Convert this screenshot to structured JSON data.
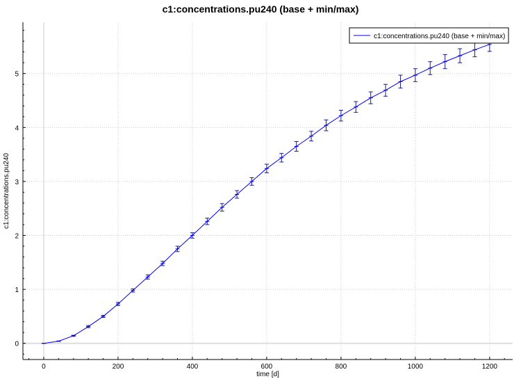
{
  "chart_data": {
    "type": "line",
    "title": "c1:concentrations.pu240 (base + min/max)",
    "xlabel": "time [d]",
    "ylabel": "c1:concentrations.pu240",
    "xlim": [
      -56,
      1262
    ],
    "ylim": [
      -0.3,
      5.95
    ],
    "xticks": [
      0,
      200,
      400,
      600,
      800,
      1000,
      1200
    ],
    "yticks": [
      0,
      1,
      2,
      3,
      4,
      5
    ],
    "grid": true,
    "legend_position": "top-right",
    "series": [
      {
        "name": "c1:concentrations.pu240 (base + min/max)",
        "color": "#0000ff",
        "x": [
          0,
          40,
          80,
          120,
          160,
          200,
          240,
          280,
          320,
          360,
          400,
          440,
          480,
          520,
          560,
          600,
          640,
          680,
          720,
          760,
          800,
          840,
          880,
          920,
          960,
          1000,
          1040,
          1080,
          1120,
          1160,
          1200
        ],
        "y": [
          0,
          0.04,
          0.14,
          0.31,
          0.5,
          0.73,
          0.98,
          1.23,
          1.48,
          1.75,
          2.0,
          2.26,
          2.52,
          2.76,
          3.0,
          3.24,
          3.44,
          3.65,
          3.84,
          4.04,
          4.22,
          4.38,
          4.55,
          4.69,
          4.85,
          4.97,
          5.1,
          5.22,
          5.33,
          5.44,
          5.54
        ],
        "min": [
          0,
          0.035,
          0.13,
          0.29,
          0.48,
          0.7,
          0.95,
          1.19,
          1.44,
          1.7,
          1.95,
          2.2,
          2.45,
          2.69,
          2.93,
          3.16,
          3.36,
          3.56,
          3.75,
          3.94,
          4.12,
          4.28,
          4.44,
          4.58,
          4.73,
          4.85,
          4.98,
          5.09,
          5.2,
          5.31,
          5.41
        ],
        "max": [
          0,
          0.045,
          0.15,
          0.33,
          0.52,
          0.76,
          1.01,
          1.27,
          1.52,
          1.8,
          2.05,
          2.32,
          2.59,
          2.83,
          3.07,
          3.32,
          3.52,
          3.74,
          3.93,
          4.14,
          4.32,
          4.48,
          4.66,
          4.8,
          4.97,
          5.09,
          5.22,
          5.35,
          5.46,
          5.57,
          5.67
        ]
      }
    ]
  }
}
